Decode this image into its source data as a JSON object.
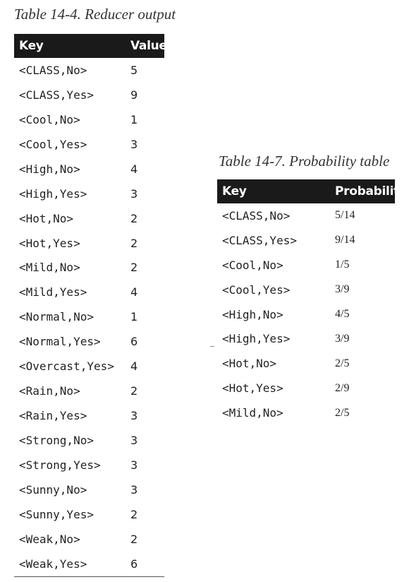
{
  "table1": {
    "caption": "Table 14-4. Reducer output",
    "headers": {
      "key": "Key",
      "value": "Value"
    },
    "rows": [
      {
        "key": "<CLASS,No>",
        "value": "5"
      },
      {
        "key": "<CLASS,Yes>",
        "value": "9"
      },
      {
        "key": "<Cool,No>",
        "value": "1"
      },
      {
        "key": "<Cool,Yes>",
        "value": "3"
      },
      {
        "key": "<High,No>",
        "value": "4"
      },
      {
        "key": "<High,Yes>",
        "value": "3"
      },
      {
        "key": "<Hot,No>",
        "value": "2"
      },
      {
        "key": "<Hot,Yes>",
        "value": "2"
      },
      {
        "key": "<Mild,No>",
        "value": "2"
      },
      {
        "key": "<Mild,Yes>",
        "value": "4"
      },
      {
        "key": "<Normal,No>",
        "value": "1"
      },
      {
        "key": "<Normal,Yes>",
        "value": "6"
      },
      {
        "key": "<Overcast,Yes>",
        "value": "4"
      },
      {
        "key": "<Rain,No>",
        "value": "2"
      },
      {
        "key": "<Rain,Yes>",
        "value": "3"
      },
      {
        "key": "<Strong,No>",
        "value": "3"
      },
      {
        "key": "<Strong,Yes>",
        "value": "3"
      },
      {
        "key": "<Sunny,No>",
        "value": "3"
      },
      {
        "key": "<Sunny,Yes>",
        "value": "2"
      },
      {
        "key": "<Weak,No>",
        "value": "2"
      },
      {
        "key": "<Weak,Yes>",
        "value": "6"
      }
    ]
  },
  "table2": {
    "caption": "Table 14-7. Probability table",
    "headers": {
      "key": "Key",
      "value": "Probability"
    },
    "rows": [
      {
        "key": "<CLASS,No>",
        "value": "5/14"
      },
      {
        "key": "<CLASS,Yes>",
        "value": "9/14"
      },
      {
        "key": "<Cool,No>",
        "value": "1/5"
      },
      {
        "key": "<Cool,Yes>",
        "value": "3/9"
      },
      {
        "key": "<High,No>",
        "value": "4/5"
      },
      {
        "key": "<High,Yes>",
        "value": "3/9"
      },
      {
        "key": "<Hot,No>",
        "value": "2/5"
      },
      {
        "key": "<Hot,Yes>",
        "value": "2/9"
      },
      {
        "key": "<Mild,No>",
        "value": "2/5"
      }
    ]
  }
}
